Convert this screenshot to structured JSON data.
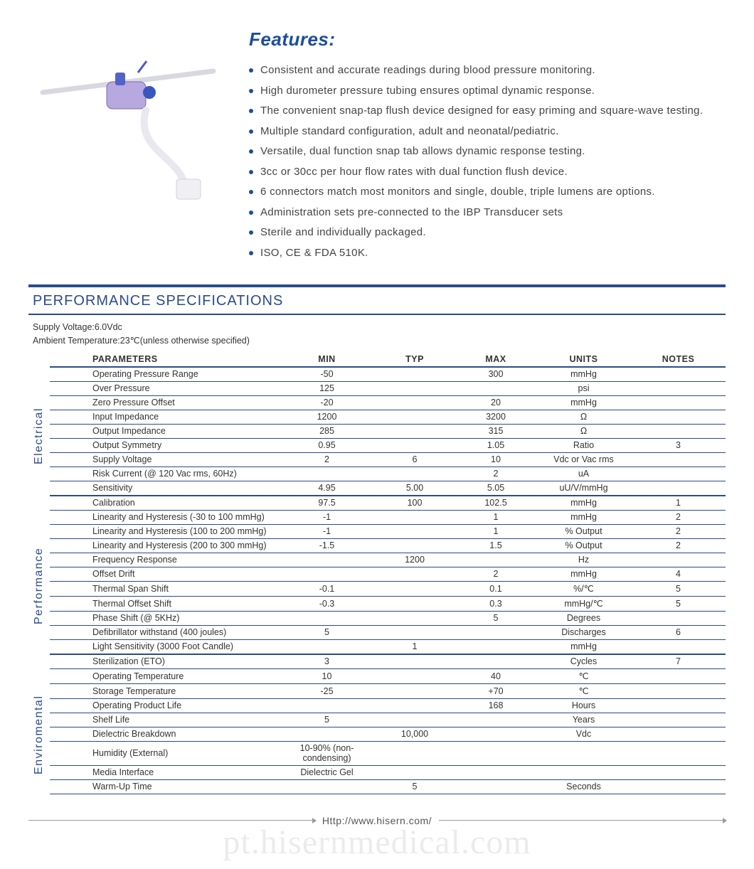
{
  "colors": {
    "accent": "#1a4e9e",
    "rule": "#2b4a8f",
    "text": "#333333",
    "background": "#ffffff",
    "watermark": "rgba(0,0,0,0.08)"
  },
  "features": {
    "title": "Features:",
    "title_fontsize": 26,
    "items": [
      "Consistent and accurate readings during blood pressure monitoring.",
      "High durometer pressure tubing ensures optimal dynamic response.",
      "The convenient snap-tap flush device designed for easy priming and square-wave testing.",
      "Multiple standard configuration, adult and neonatal/pediatric.",
      "Versatile, dual function snap tab allows dynamic response testing.",
      "3cc or 30cc per hour flow rates with dual function flush device.",
      "6 connectors match most monitors and single, double, triple lumens are options.",
      "Administration sets pre-connected to the IBP Transducer sets",
      "Sterile and individually packaged.",
      "ISO, CE & FDA 510K."
    ]
  },
  "product_image": {
    "description": "Disposable blood pressure transducer with tubing, purple housing and white connector"
  },
  "spec": {
    "title": "PERFORMANCE SPECIFICATIONS",
    "conditions": [
      "Supply Voltage:6.0Vdc",
      "Ambient Temperature:23℃(unless otherwise specified)"
    ],
    "columns": [
      "PARAMETERS",
      "MIN",
      "TYP",
      "MAX",
      "UNITS",
      "NOTES"
    ],
    "column_widths_pct": [
      34,
      14,
      12,
      12,
      14,
      14
    ],
    "sections": [
      {
        "label": "Electrical",
        "rows": [
          {
            "param": "Operating Pressure Range",
            "min": "-50",
            "typ": "",
            "max": "300",
            "units": "mmHg",
            "notes": ""
          },
          {
            "param": "Over  Pressure",
            "min": "125",
            "typ": "",
            "max": "",
            "units": "psi",
            "notes": ""
          },
          {
            "param": "Zero Pressure Offset",
            "min": "-20",
            "typ": "",
            "max": "20",
            "units": "mmHg",
            "notes": ""
          },
          {
            "param": "Input Impedance",
            "min": "1200",
            "typ": "",
            "max": "3200",
            "units": "Ω",
            "notes": ""
          },
          {
            "param": "Output Impedance",
            "min": "285",
            "typ": "",
            "max": "315",
            "units": "Ω",
            "notes": ""
          },
          {
            "param": "Output Symmetry",
            "min": "0.95",
            "typ": "",
            "max": "1.05",
            "units": "Ratio",
            "notes": "3"
          },
          {
            "param": "Supply Voltage",
            "min": "2",
            "typ": "6",
            "max": "10",
            "units": "Vdc or Vac rms",
            "notes": ""
          },
          {
            "param": "Risk Current (@ 120 Vac rms, 60Hz)",
            "min": "",
            "typ": "",
            "max": "2",
            "units": "uA",
            "notes": ""
          },
          {
            "param": "Sensitivity",
            "min": "4.95",
            "typ": "5.00",
            "max": "5.05",
            "units": "uU/V/mmHg",
            "notes": ""
          }
        ]
      },
      {
        "label": "Performance",
        "rows": [
          {
            "param": "Calibration",
            "min": "97.5",
            "typ": "100",
            "max": "102.5",
            "units": "mmHg",
            "notes": "1"
          },
          {
            "param": "Linearity and Hysteresis (-30 to 100 mmHg)",
            "min": "-1",
            "typ": "",
            "max": "1",
            "units": "mmHg",
            "notes": "2"
          },
          {
            "param": "Linearity and Hysteresis (100 to 200 mmHg)",
            "min": "-1",
            "typ": "",
            "max": "1",
            "units": "% Output",
            "notes": "2"
          },
          {
            "param": "Linearity and Hysteresis (200 to 300 mmHg)",
            "min": "-1.5",
            "typ": "",
            "max": "1.5",
            "units": "% Output",
            "notes": "2"
          },
          {
            "param": "Frequency Response",
            "min": "",
            "typ": "1200",
            "max": "",
            "units": "Hz",
            "notes": ""
          },
          {
            "param": "Offset Drift",
            "min": "",
            "typ": "",
            "max": "2",
            "units": "mmHg",
            "notes": "4"
          },
          {
            "param": "Thermal Span Shift",
            "min": "-0.1",
            "typ": "",
            "max": "0.1",
            "units": "%/℃",
            "notes": "5"
          },
          {
            "param": "Thermal Offset Shift",
            "min": "-0.3",
            "typ": "",
            "max": "0.3",
            "units": "mmHg/℃",
            "notes": "5"
          },
          {
            "param": "Phase Shift (@ 5KHz)",
            "min": "",
            "typ": "",
            "max": "5",
            "units": "Degrees",
            "notes": ""
          },
          {
            "param": "Defibrillator withstand (400 joules)",
            "min": "5",
            "typ": "",
            "max": "",
            "units": "Discharges",
            "notes": "6"
          },
          {
            "param": "Light Sensitivity (3000 Foot Candle)",
            "min": "",
            "typ": "1",
            "max": "",
            "units": "mmHg",
            "notes": ""
          }
        ]
      },
      {
        "label": "Enviromental",
        "rows": [
          {
            "param": "Sterilization (ETO)",
            "min": "3",
            "typ": "",
            "max": "",
            "units": "Cycles",
            "notes": "7"
          },
          {
            "param": "Operating Temperature",
            "min": "10",
            "typ": "",
            "max": "40",
            "units": "℃",
            "notes": ""
          },
          {
            "param": "Storage Temperature",
            "min": "-25",
            "typ": "",
            "max": "+70",
            "units": "℃",
            "notes": ""
          },
          {
            "param": "Operating Product Life",
            "min": "",
            "typ": "",
            "max": "168",
            "units": "Hours",
            "notes": ""
          },
          {
            "param": "Shelf Life",
            "min": "5",
            "typ": "",
            "max": "",
            "units": "Years",
            "notes": ""
          },
          {
            "param": "Dielectric Breakdown",
            "min": "",
            "typ": "10,000",
            "max": "",
            "units": "Vdc",
            "notes": ""
          },
          {
            "param": "Humidity (External)",
            "min": "10-90% (non-condensing)",
            "typ": "",
            "max": "",
            "units": "",
            "notes": ""
          },
          {
            "param": "Media Interface",
            "min": "Dielectric Gel",
            "typ": "",
            "max": "",
            "units": "",
            "notes": ""
          },
          {
            "param": "Warm-Up Time",
            "min": "",
            "typ": "5",
            "max": "",
            "units": "Seconds",
            "notes": ""
          }
        ]
      }
    ]
  },
  "footer_url": "Http://www.hisern.com/",
  "watermark": "pt.hisernmedical.com"
}
